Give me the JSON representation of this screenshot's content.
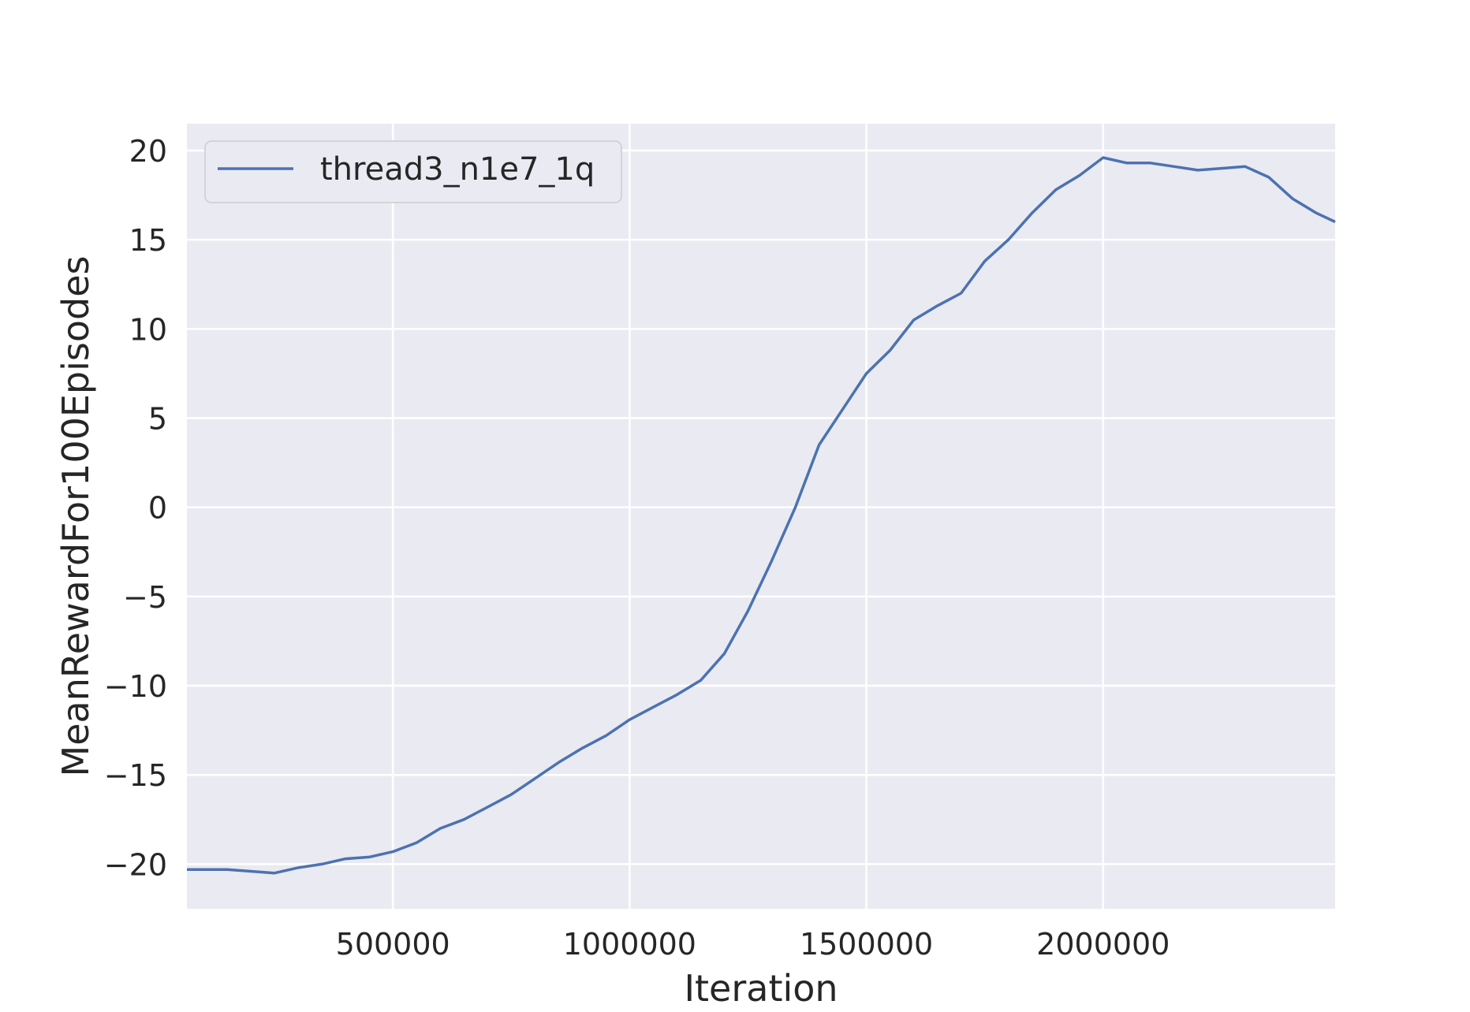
{
  "chart_data": {
    "type": "line",
    "title": "",
    "xlabel": "Iteration",
    "ylabel": "MeanRewardFor100Episodes",
    "xlim": [
      65000,
      2490000
    ],
    "ylim": [
      -22.5,
      21.5
    ],
    "xticks": [
      500000,
      1000000,
      1500000,
      2000000
    ],
    "xtick_labels": [
      "500000",
      "1000000",
      "1500000",
      "2000000"
    ],
    "yticks": [
      -20,
      -15,
      -10,
      -5,
      0,
      5,
      10,
      15,
      20
    ],
    "ytick_labels": [
      "−20",
      "−15",
      "−10",
      "−5",
      "0",
      "5",
      "10",
      "15",
      "20"
    ],
    "grid": true,
    "legend_position": "upper-left",
    "series": [
      {
        "name": "thread3_n1e7_1q",
        "color": "#4c72b0",
        "x": [
          65000,
          100000,
          150000,
          200000,
          250000,
          300000,
          350000,
          400000,
          450000,
          500000,
          550000,
          600000,
          650000,
          700000,
          750000,
          800000,
          850000,
          900000,
          950000,
          1000000,
          1050000,
          1100000,
          1150000,
          1200000,
          1250000,
          1300000,
          1350000,
          1400000,
          1450000,
          1500000,
          1550000,
          1600000,
          1650000,
          1700000,
          1750000,
          1800000,
          1850000,
          1900000,
          1950000,
          2000000,
          2050000,
          2100000,
          2150000,
          2200000,
          2250000,
          2300000,
          2350000,
          2400000,
          2450000,
          2490000
        ],
        "y": [
          -20.3,
          -20.3,
          -20.3,
          -20.4,
          -20.5,
          -20.2,
          -20.0,
          -19.7,
          -19.6,
          -19.3,
          -18.8,
          -18.0,
          -17.5,
          -16.8,
          -16.1,
          -15.2,
          -14.3,
          -13.5,
          -12.8,
          -11.9,
          -11.2,
          -10.5,
          -9.7,
          -8.2,
          -5.8,
          -3.0,
          0.0,
          3.5,
          5.5,
          7.5,
          8.8,
          10.5,
          11.3,
          12.0,
          13.8,
          15.0,
          16.5,
          17.8,
          18.6,
          19.6,
          19.3,
          19.3,
          19.1,
          18.9,
          19.0,
          19.1,
          18.5,
          17.3,
          16.5,
          16.0
        ]
      }
    ]
  }
}
